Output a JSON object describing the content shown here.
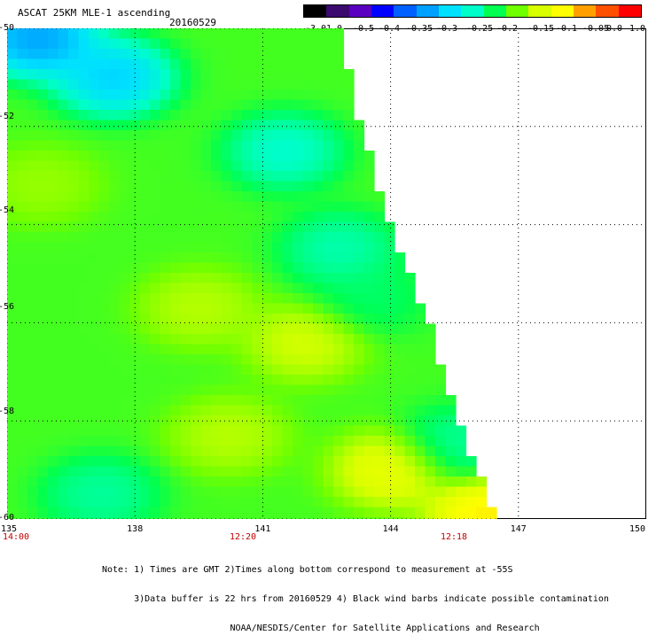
{
  "title": "ASCAT 25KM MLE-1 ascending",
  "date": "20160529",
  "colorbar": {
    "labels": [
      "-3.0",
      "-1.0",
      "-0.5",
      "-0.4",
      "-0.35",
      "-0.3",
      "-0.25",
      "-0.2",
      "-0.15",
      "-0.1",
      "-0.05",
      "0.0",
      "1.0"
    ],
    "colors": [
      "#000000",
      "#3a0a6e",
      "#5a00c0",
      "#0000ff",
      "#0060ff",
      "#00a0ff",
      "#00e0ff",
      "#00ffc8",
      "#00ff50",
      "#70ff00",
      "#d8ff00",
      "#ffff00",
      "#ffa000",
      "#ff5000",
      "#ff0000"
    ]
  },
  "lat_labels": [
    "-50",
    "-52",
    "-54",
    "-56",
    "-58",
    "-60"
  ],
  "lon_labels": [
    "135",
    "138",
    "141",
    "144",
    "147",
    "150"
  ],
  "time_labels": [
    "14:00",
    "12:20",
    "12:18"
  ],
  "notes": [
    "Note: 1) Times are GMT 2)Times along bottom correspond to measurement at -55S",
    "      3)Data buffer is 22 hrs from 20160529 4) Black wind barbs indicate possible contamination",
    "                        NOAA/NESDIS/Center for Satellite Applications and Research"
  ],
  "chart_data": {
    "type": "heatmap",
    "title": "ASCAT 25KM MLE-1 ascending",
    "x_range": [
      135,
      150
    ],
    "y_range": [
      -60,
      -50
    ],
    "x_ticks": [
      135,
      138,
      141,
      144,
      147,
      150
    ],
    "y_ticks": [
      -50,
      -52,
      -54,
      -56,
      -58,
      -60
    ],
    "value_scale": [
      -3.0,
      -1.0,
      -0.5,
      -0.4,
      -0.35,
      -0.3,
      -0.25,
      -0.2,
      -0.15,
      -0.1,
      -0.05,
      0.0,
      1.0
    ],
    "swath_east_edge": [
      {
        "lat": -50,
        "lon": 142.8
      },
      {
        "lat": -52,
        "lon": 143.3
      },
      {
        "lat": -54,
        "lon": 144.0
      },
      {
        "lat": -56,
        "lon": 144.9
      },
      {
        "lat": -58,
        "lon": 145.6
      },
      {
        "lat": -60,
        "lon": 146.5
      }
    ],
    "regions": [
      {
        "lat": -51,
        "lon": 137.5,
        "value": -0.35
      },
      {
        "lat": -50.2,
        "lon": 135.7,
        "value": -0.4
      },
      {
        "lat": -52.5,
        "lon": 141.5,
        "value": -0.28
      },
      {
        "lat": -54.5,
        "lon": 142.8,
        "value": -0.26
      },
      {
        "lat": -55.5,
        "lon": 143.5,
        "value": -0.22
      },
      {
        "lat": -58.5,
        "lon": 145.5,
        "value": -0.25
      },
      {
        "lat": -59.5,
        "lon": 137.2,
        "value": -0.25
      },
      {
        "lat": -55.7,
        "lon": 139.5,
        "value": -0.1
      },
      {
        "lat": -56.4,
        "lon": 142.0,
        "value": -0.08
      },
      {
        "lat": -58.3,
        "lon": 140.2,
        "value": -0.1
      },
      {
        "lat": -59.0,
        "lon": 144.0,
        "value": -0.05
      },
      {
        "lat": -53.2,
        "lon": 135.8,
        "value": -0.12
      },
      {
        "lat": -59.9,
        "lon": 146.3,
        "value": 0.0
      }
    ]
  }
}
